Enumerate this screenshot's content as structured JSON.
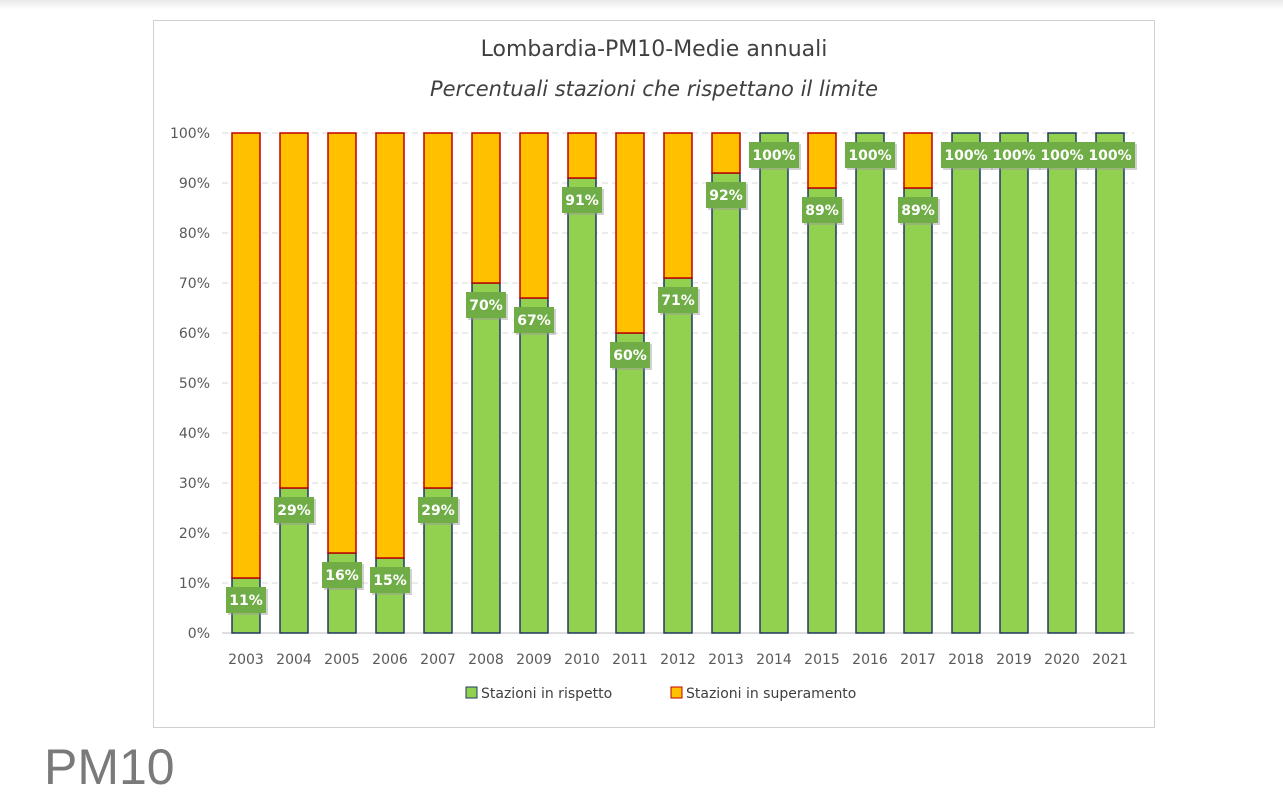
{
  "chart_data": {
    "type": "bar",
    "stacked": true,
    "title": "Lombardia-PM10-Medie annuali",
    "subtitle": "Percentuali stazioni che rispettano il limite",
    "categories": [
      "2003",
      "2004",
      "2005",
      "2006",
      "2007",
      "2008",
      "2009",
      "2010",
      "2011",
      "2012",
      "2013",
      "2014",
      "2015",
      "2016",
      "2017",
      "2018",
      "2019",
      "2020",
      "2021"
    ],
    "series": [
      {
        "name": "Stazioni in rispetto",
        "color": "#92d050",
        "border": "#1f3864",
        "values": [
          11,
          29,
          16,
          15,
          29,
          70,
          67,
          91,
          60,
          71,
          92,
          100,
          89,
          100,
          89,
          100,
          100,
          100,
          100
        ],
        "labels": [
          "11%",
          "29%",
          "16%",
          "15%",
          "29%",
          "70%",
          "67%",
          "91%",
          "60%",
          "71%",
          "92%",
          "100%",
          "89%",
          "100%",
          "89%",
          "100%",
          "100%",
          "100%",
          "100%"
        ]
      },
      {
        "name": "Stazioni in superamento",
        "color": "#ffc000",
        "border": "#c00000",
        "values": [
          89,
          71,
          84,
          85,
          71,
          30,
          33,
          9,
          40,
          29,
          8,
          0,
          11,
          0,
          11,
          0,
          0,
          0,
          0
        ]
      }
    ],
    "y_ticks": [
      "0%",
      "10%",
      "20%",
      "30%",
      "40%",
      "50%",
      "60%",
      "70%",
      "80%",
      "90%",
      "100%"
    ],
    "ylim": [
      0,
      100
    ],
    "grid": true,
    "legend": "bottom",
    "label_box_color": "#70ad47"
  },
  "footer": {
    "title": "PM10"
  }
}
